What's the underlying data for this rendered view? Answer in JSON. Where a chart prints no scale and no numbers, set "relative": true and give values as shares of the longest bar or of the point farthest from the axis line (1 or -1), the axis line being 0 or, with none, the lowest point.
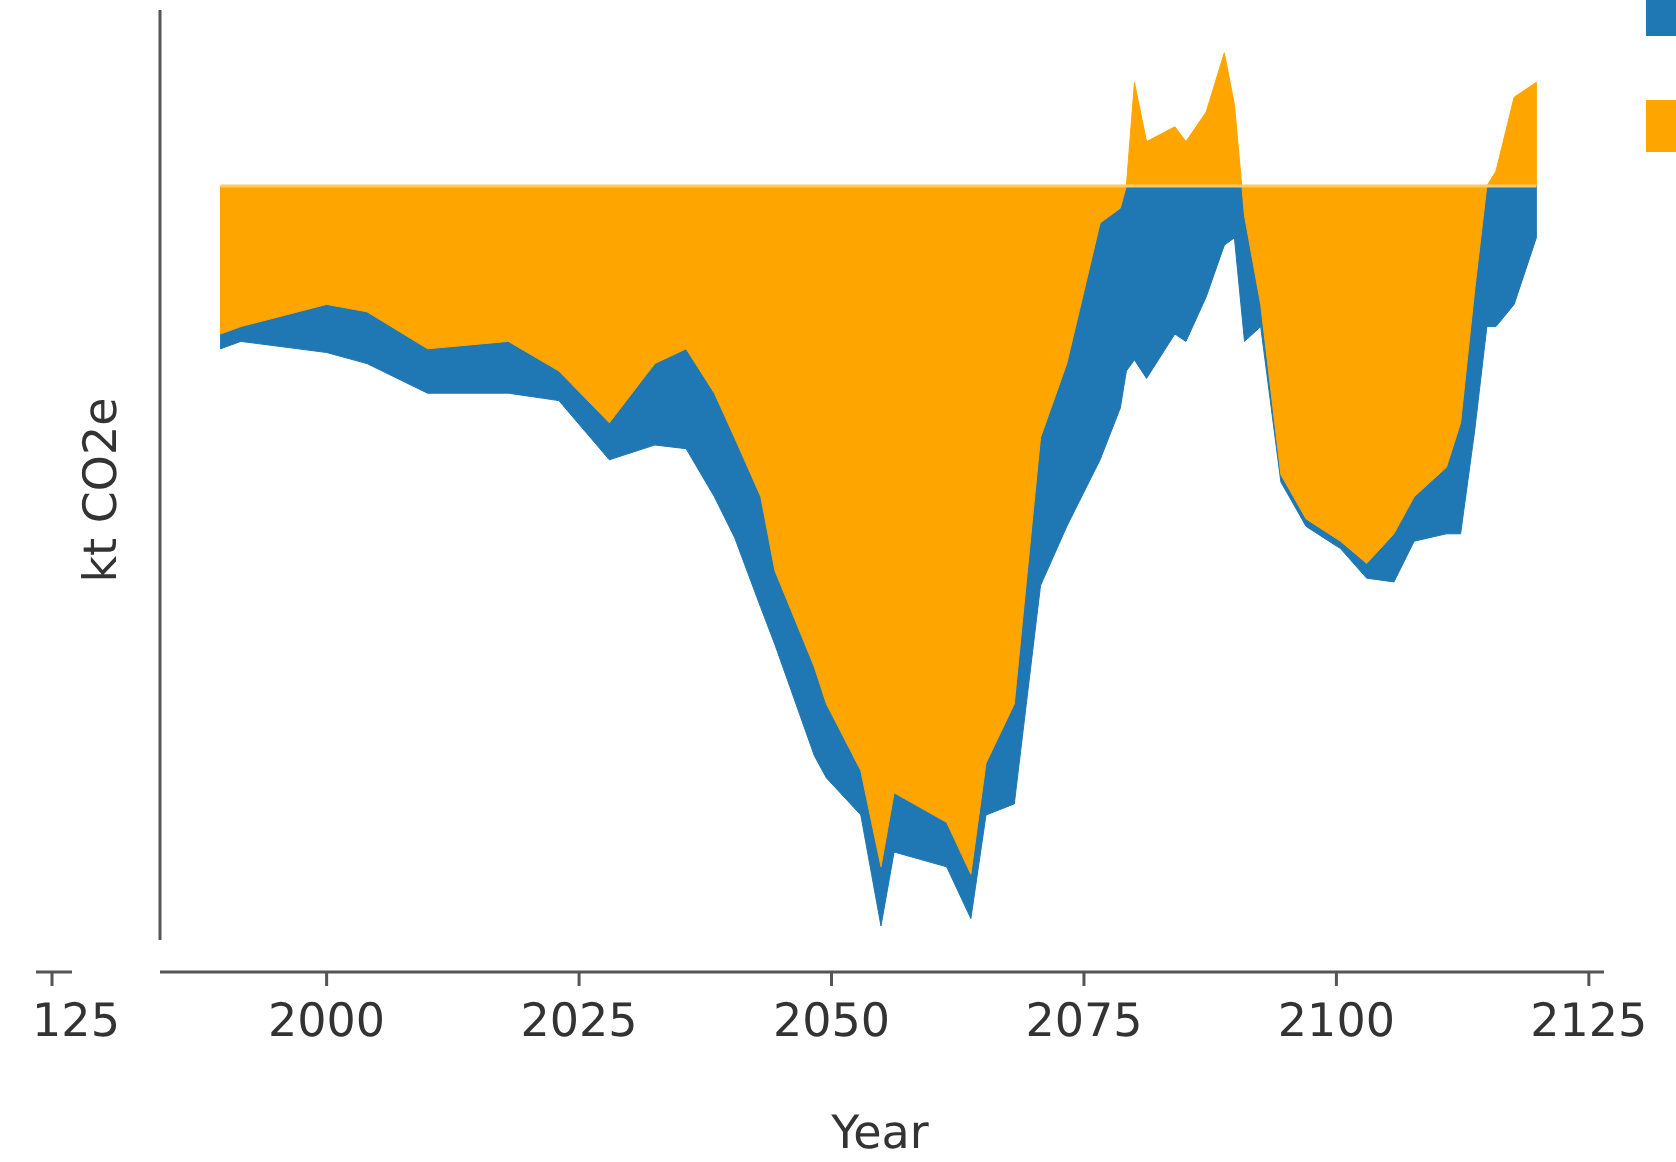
{
  "chart_data": {
    "type": "area",
    "relative": true,
    "xlabel": "Year",
    "ylabel": "kt CO2e",
    "grid": false,
    "xlim": [
      1983.5,
      2126.5
    ],
    "xticks": [
      2000,
      2025,
      2050,
      2075,
      2100,
      2125
    ],
    "x": [
      1989.5,
      1991.5,
      2000,
      2004,
      2010,
      2018,
      2023,
      2028,
      2032.5,
      2035.6,
      2038.4,
      2040.4,
      2043,
      2044.4,
      2048.3,
      2049.5,
      2052.9,
      2054.9,
      2056.2,
      2061.4,
      2063.8,
      2065.3,
      2068.1,
      2070.7,
      2073.3,
      2076.6,
      2078.6,
      2079.2,
      2080,
      2081.2,
      2084,
      2085.1,
      2087.1,
      2088.9,
      2089.9,
      2090.9,
      2092.5,
      2094.5,
      2097,
      2100.4,
      2103,
      2105.7,
      2107.7,
      2110.9,
      2112.3,
      2113.7,
      2114.9,
      2115.8,
      2117.6,
      2119.8
    ],
    "series": [
      {
        "color": "#1f77b4",
        "values": [
          -0.22,
          -0.21,
          -0.225,
          -0.24,
          -0.28,
          -0.28,
          -0.29,
          -0.37,
          -0.35,
          -0.355,
          -0.42,
          -0.475,
          -0.57,
          -0.62,
          -0.77,
          -0.8,
          -0.85,
          -1,
          -0.9,
          -0.92,
          -0.99,
          -0.85,
          -0.835,
          -0.54,
          -0.46,
          -0.37,
          -0.3,
          -0.25,
          -0.235,
          -0.26,
          -0.2,
          -0.21,
          -0.15,
          -0.08,
          -0.07,
          -0.21,
          -0.19,
          -0.4,
          -0.46,
          -0.49,
          -0.53,
          -0.535,
          -0.48,
          -0.47,
          -0.47,
          -0.33,
          -0.19,
          -0.19,
          -0.16,
          -0.07
        ]
      },
      {
        "color": "#ffa500",
        "values": [
          -0.2,
          -0.19,
          -0.16,
          -0.17,
          -0.22,
          -0.21,
          -0.25,
          -0.32,
          -0.24,
          -0.22,
          -0.28,
          -0.34,
          -0.42,
          -0.52,
          -0.65,
          -0.7,
          -0.79,
          -0.92,
          -0.82,
          -0.86,
          -0.93,
          -0.78,
          -0.7,
          -0.34,
          -0.24,
          -0.05,
          -0.03,
          0,
          0.14,
          0.06,
          0.08,
          0.06,
          0.1,
          0.18,
          0.11,
          -0.04,
          -0.16,
          -0.39,
          -0.45,
          -0.48,
          -0.51,
          -0.47,
          -0.42,
          -0.38,
          -0.32,
          -0.14,
          0,
          0.02,
          0.12,
          0.14
        ]
      }
    ],
    "ref_lines": [
      {
        "axis": "y",
        "value": 0,
        "color": "#ffc966"
      }
    ],
    "annotations": [
      "125"
    ]
  }
}
